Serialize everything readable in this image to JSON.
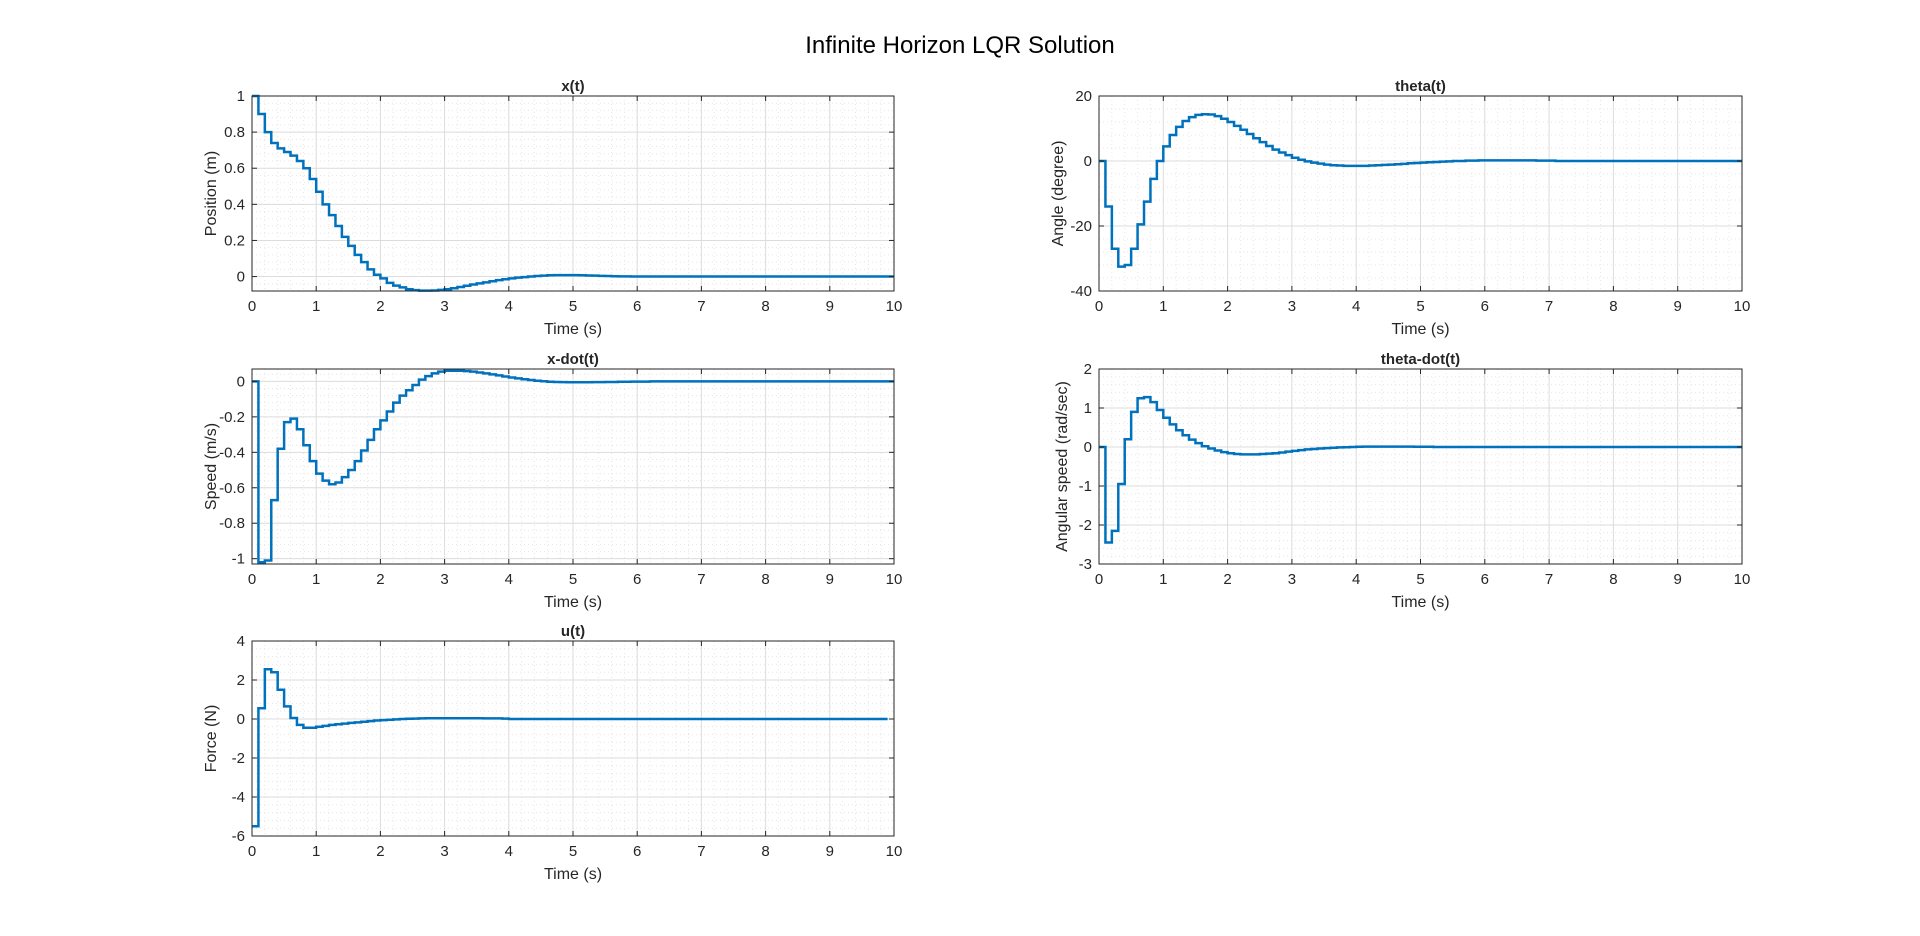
{
  "figure": {
    "title": "Infinite Horizon LQR Solution",
    "line_color": "#0072BD",
    "grid": "on (major and minor)",
    "background": "#ffffff"
  },
  "chart_data": [
    {
      "type": "line",
      "style": "stairs",
      "title": "x(t)",
      "xlabel": "Time (s)",
      "ylabel": "Position (m)",
      "xlim": [
        0,
        10
      ],
      "ylim": [
        -0.08,
        1
      ],
      "xticks": [
        "0",
        "1",
        "2",
        "3",
        "4",
        "5",
        "6",
        "7",
        "8",
        "9",
        "10"
      ],
      "yticks": [
        "0",
        "0.2",
        "0.4",
        "0.6",
        "0.8",
        "1"
      ],
      "ytick_values": [
        0,
        0.2,
        0.4,
        0.6,
        0.8,
        1
      ],
      "dt": 0.1,
      "values": [
        1.0,
        0.9,
        0.8,
        0.74,
        0.71,
        0.69,
        0.67,
        0.64,
        0.6,
        0.54,
        0.47,
        0.4,
        0.34,
        0.28,
        0.22,
        0.17,
        0.12,
        0.08,
        0.04,
        0.01,
        -0.01,
        -0.035,
        -0.05,
        -0.06,
        -0.07,
        -0.075,
        -0.078,
        -0.078,
        -0.077,
        -0.074,
        -0.07,
        -0.065,
        -0.058,
        -0.051,
        -0.044,
        -0.038,
        -0.032,
        -0.026,
        -0.02,
        -0.015,
        -0.01,
        -0.006,
        -0.003,
        0.0,
        0.003,
        0.005,
        0.007,
        0.008,
        0.008,
        0.008,
        0.008,
        0.007,
        0.006,
        0.005,
        0.004,
        0.003,
        0.002,
        0.001,
        0.001,
        0.0,
        0.0,
        0.0,
        0.0,
        0.0,
        0.0,
        0.0,
        0.0,
        0.0,
        0.0,
        0.0,
        0.0,
        0.0,
        0.0,
        0.0,
        0.0,
        0.0,
        0.0,
        0.0,
        0.0,
        0.0,
        0.0,
        0.0,
        0.0,
        0.0,
        0.0,
        0.0,
        0.0,
        0.0,
        0.0,
        0.0,
        0.0,
        0.0,
        0.0,
        0.0,
        0.0,
        0.0,
        0.0,
        0.0,
        0.0,
        0.0,
        0.0
      ]
    },
    {
      "type": "line",
      "style": "stairs",
      "title": "theta(t)",
      "xlabel": "Time (s)",
      "ylabel": "Angle (degree)",
      "xlim": [
        0,
        10
      ],
      "ylim": [
        -40,
        20
      ],
      "xticks": [
        "0",
        "1",
        "2",
        "3",
        "4",
        "5",
        "6",
        "7",
        "8",
        "9",
        "10"
      ],
      "yticks": [
        "-40",
        "-20",
        "0",
        "20"
      ],
      "ytick_values": [
        -40,
        -20,
        0,
        20
      ],
      "dt": 0.1,
      "values": [
        0,
        -14,
        -27,
        -32.5,
        -32,
        -27,
        -19.5,
        -12.5,
        -5.5,
        0,
        4.5,
        8,
        10.5,
        12.3,
        13.5,
        14.2,
        14.4,
        14.3,
        13.8,
        13,
        12,
        10.8,
        9.6,
        8.3,
        7,
        5.8,
        4.6,
        3.5,
        2.6,
        1.8,
        1.0,
        0.4,
        -0.1,
        -0.5,
        -0.8,
        -1.1,
        -1.3,
        -1.4,
        -1.5,
        -1.5,
        -1.5,
        -1.5,
        -1.4,
        -1.3,
        -1.2,
        -1.1,
        -1.0,
        -0.9,
        -0.7,
        -0.6,
        -0.5,
        -0.4,
        -0.3,
        -0.2,
        -0.1,
        0.0,
        0.0,
        0.1,
        0.1,
        0.2,
        0.2,
        0.2,
        0.2,
        0.2,
        0.2,
        0.2,
        0.2,
        0.2,
        0.1,
        0.1,
        0.1,
        0.0,
        0.0,
        0.0,
        0.0,
        0.0,
        0.0,
        0.0,
        0.0,
        0.0,
        0.0,
        0.0,
        0.0,
        0.0,
        0.0,
        0.0,
        0.0,
        0.0,
        0.0,
        0.0,
        0.0,
        0.0,
        0.0,
        0.0,
        0.0,
        0.0,
        0.0,
        0.0,
        0.0,
        0.0,
        0.0
      ]
    },
    {
      "type": "line",
      "style": "stairs",
      "title": "x-dot(t)",
      "xlabel": "Time (s)",
      "ylabel": "Speed (m/s)",
      "xlim": [
        0,
        10
      ],
      "ylim": [
        -1.03,
        0.07
      ],
      "xticks": [
        "0",
        "1",
        "2",
        "3",
        "4",
        "5",
        "6",
        "7",
        "8",
        "9",
        "10"
      ],
      "yticks": [
        "-1",
        "-0.8",
        "-0.6",
        "-0.4",
        "-0.2",
        "0"
      ],
      "ytick_values": [
        -1,
        -0.8,
        -0.6,
        -0.4,
        -0.2,
        0
      ],
      "dt": 0.1,
      "values": [
        0,
        -1.02,
        -1.01,
        -0.67,
        -0.38,
        -0.23,
        -0.21,
        -0.27,
        -0.36,
        -0.45,
        -0.52,
        -0.56,
        -0.58,
        -0.57,
        -0.54,
        -0.5,
        -0.45,
        -0.39,
        -0.33,
        -0.27,
        -0.22,
        -0.17,
        -0.12,
        -0.08,
        -0.05,
        -0.02,
        0.01,
        0.03,
        0.045,
        0.055,
        0.06,
        0.06,
        0.06,
        0.058,
        0.055,
        0.05,
        0.045,
        0.04,
        0.034,
        0.028,
        0.022,
        0.017,
        0.012,
        0.008,
        0.004,
        0.001,
        -0.002,
        -0.003,
        -0.004,
        -0.005,
        -0.005,
        -0.005,
        -0.005,
        -0.004,
        -0.004,
        -0.003,
        -0.003,
        -0.002,
        -0.002,
        -0.001,
        -0.001,
        -0.001,
        0.0,
        0.0,
        0.0,
        0.0,
        0.0,
        0.0,
        0.0,
        0.0,
        0.0,
        0.0,
        0.0,
        0.0,
        0.0,
        0.0,
        0.0,
        0.0,
        0.0,
        0.0,
        0.0,
        0.0,
        0.0,
        0.0,
        0.0,
        0.0,
        0.0,
        0.0,
        0.0,
        0.0,
        0.0,
        0.0,
        0.0,
        0.0,
        0.0,
        0.0,
        0.0,
        0.0,
        0.0,
        0.0,
        0.0
      ]
    },
    {
      "type": "line",
      "style": "stairs",
      "title": "theta-dot(t)",
      "xlabel": "Time (s)",
      "ylabel": "Angular speed (rad/sec)",
      "xlim": [
        0,
        10
      ],
      "ylim": [
        -3,
        2
      ],
      "xticks": [
        "0",
        "1",
        "2",
        "3",
        "4",
        "5",
        "6",
        "7",
        "8",
        "9",
        "10"
      ],
      "yticks": [
        "-3",
        "-2",
        "-1",
        "0",
        "1",
        "2"
      ],
      "ytick_values": [
        -3,
        -2,
        -1,
        0,
        1,
        2
      ],
      "dt": 0.1,
      "values": [
        0,
        -2.45,
        -2.15,
        -0.95,
        0.2,
        0.9,
        1.25,
        1.28,
        1.15,
        0.95,
        0.75,
        0.58,
        0.43,
        0.3,
        0.19,
        0.1,
        0.02,
        -0.04,
        -0.09,
        -0.13,
        -0.16,
        -0.18,
        -0.19,
        -0.19,
        -0.19,
        -0.18,
        -0.17,
        -0.16,
        -0.14,
        -0.12,
        -0.1,
        -0.08,
        -0.06,
        -0.05,
        -0.04,
        -0.03,
        -0.02,
        -0.01,
        -0.005,
        0.0,
        0.005,
        0.01,
        0.01,
        0.01,
        0.01,
        0.01,
        0.01,
        0.01,
        0.01,
        0.005,
        0.005,
        0.005,
        0.0,
        0.0,
        0.0,
        0.0,
        0.0,
        0.0,
        0.0,
        0.0,
        0.0,
        0.0,
        0.0,
        0.0,
        0.0,
        0.0,
        0.0,
        0.0,
        0.0,
        0.0,
        0.0,
        0.0,
        0.0,
        0.0,
        0.0,
        0.0,
        0.0,
        0.0,
        0.0,
        0.0,
        0.0,
        0.0,
        0.0,
        0.0,
        0.0,
        0.0,
        0.0,
        0.0,
        0.0,
        0.0,
        0.0,
        0.0,
        0.0,
        0.0,
        0.0,
        0.0,
        0.0,
        0.0,
        0.0,
        0.0,
        0.0
      ]
    },
    {
      "type": "line",
      "style": "stairs",
      "title": "u(t)",
      "xlabel": "Time (s)",
      "ylabel": "Force (N)",
      "xlim": [
        0,
        10
      ],
      "ylim": [
        -6,
        4
      ],
      "xticks": [
        "0",
        "1",
        "2",
        "3",
        "4",
        "5",
        "6",
        "7",
        "8",
        "9",
        "10"
      ],
      "yticks": [
        "-6",
        "-4",
        "-2",
        "0",
        "2",
        "4"
      ],
      "ytick_values": [
        -6,
        -4,
        -2,
        0,
        2,
        4
      ],
      "dt": 0.1,
      "values": [
        -5.5,
        0.55,
        2.55,
        2.4,
        1.5,
        0.65,
        0.05,
        -0.3,
        -0.45,
        -0.45,
        -0.4,
        -0.35,
        -0.3,
        -0.27,
        -0.24,
        -0.2,
        -0.17,
        -0.14,
        -0.11,
        -0.08,
        -0.06,
        -0.04,
        -0.02,
        0.0,
        0.01,
        0.02,
        0.03,
        0.04,
        0.04,
        0.04,
        0.04,
        0.04,
        0.04,
        0.04,
        0.04,
        0.04,
        0.03,
        0.03,
        0.03,
        0.02,
        0.0,
        0.0,
        0.0,
        0.0,
        0.0,
        0.0,
        0.0,
        0.0,
        0.0,
        0.0,
        0.0,
        0.0,
        0.0,
        0.0,
        0.0,
        0.0,
        0.0,
        0.0,
        0.0,
        0.0,
        0.0,
        0.0,
        0.0,
        0.0,
        0.0,
        0.0,
        0.0,
        0.0,
        0.0,
        0.0,
        0.0,
        0.0,
        0.0,
        0.0,
        0.0,
        0.0,
        0.0,
        0.0,
        0.0,
        0.0,
        0.0,
        0.0,
        0.0,
        0.0,
        0.0,
        0.0,
        0.0,
        0.0,
        0.0,
        0.0,
        0.0,
        0.0,
        0.0,
        0.0,
        0.0,
        0.0,
        0.0,
        0.0,
        0.0
      ]
    }
  ]
}
